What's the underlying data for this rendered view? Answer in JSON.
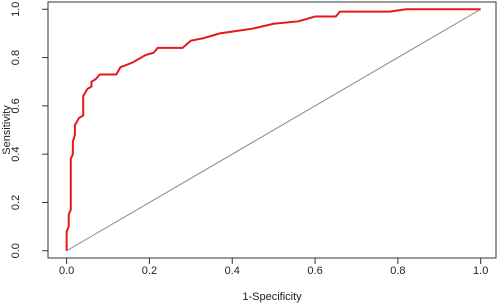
{
  "chart_data": {
    "type": "line",
    "xlabel": "1-Specificity",
    "ylabel": "Sensitivity",
    "xlim": [
      -0.045,
      1.037
    ],
    "ylim": [
      -0.03,
      1.03
    ],
    "xticks": [
      {
        "value": 0,
        "label": "0.0"
      },
      0.2,
      0.4,
      0.6,
      0.8,
      {
        "value": 1,
        "label": "1.0"
      }
    ],
    "yticks": [
      {
        "value": 0,
        "label": "0.0"
      },
      0.2,
      0.4,
      0.6,
      0.8,
      {
        "value": 1,
        "label": "1.0"
      }
    ],
    "series": [
      {
        "color": "#e31a1c",
        "x": [
          0,
          0,
          0.005,
          0.005,
          0.01,
          0.01,
          0.015,
          0.015,
          0.02,
          0.02,
          0.03,
          0.04,
          0.04,
          0.05,
          0.06,
          0.06,
          0.07,
          0.08,
          0.12,
          0.13,
          0.16,
          0.19,
          0.21,
          0.22,
          0.28,
          0.3,
          0.33,
          0.37,
          0.41,
          0.45,
          0.5,
          0.56,
          0.6,
          0.65,
          0.66,
          0.78,
          0.82,
          1
        ],
        "values": [
          0,
          0.08,
          0.1,
          0.15,
          0.17,
          0.38,
          0.4,
          0.45,
          0.48,
          0.52,
          0.55,
          0.56,
          0.64,
          0.67,
          0.68,
          0.7,
          0.71,
          0.73,
          0.73,
          0.76,
          0.78,
          0.81,
          0.82,
          0.84,
          0.84,
          0.87,
          0.88,
          0.9,
          0.91,
          0.92,
          0.94,
          0.95,
          0.97,
          0.97,
          0.99,
          0.99,
          1,
          1
        ]
      },
      {
        "color": "#888888",
        "x": [
          0,
          1
        ],
        "values": [
          0,
          1
        ]
      }
    ]
  }
}
